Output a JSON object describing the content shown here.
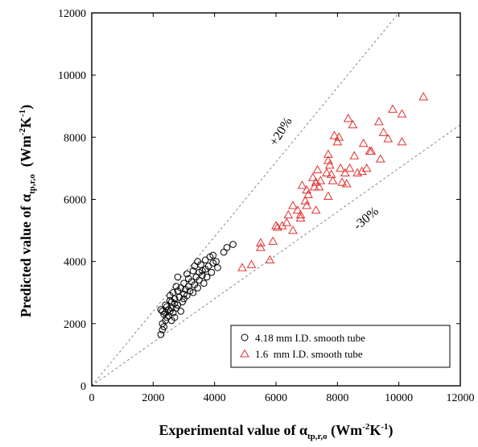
{
  "chart_data": {
    "type": "scatter",
    "xlabel": {
      "prefix": "Experimental value of α",
      "subscript": "tp,r,o",
      "unit_open": " (Wm",
      "unit_sup1": "-2",
      "unit_mid": "K",
      "unit_sup2": "-1",
      "unit_close": ")"
    },
    "ylabel": {
      "prefix": "Predicted value of α",
      "subscript": "tp,r,o",
      "unit_open": "  (Wm",
      "unit_sup1": "-2",
      "unit_mid": "K",
      "unit_sup2": "-1",
      "unit_close": ")"
    },
    "xlim": [
      0,
      12000
    ],
    "ylim": [
      0,
      12000
    ],
    "xticks": [
      "0",
      "2000",
      "4000",
      "6000",
      "8000",
      "10000",
      "12000"
    ],
    "yticks": [
      "0",
      "2000",
      "4000",
      "6000",
      "8000",
      "10000",
      "12000"
    ],
    "grid": false,
    "reference_lines": [
      {
        "label": "+20%",
        "factor": 1.2
      },
      {
        "label": "-30%",
        "factor": 0.7
      }
    ],
    "legend": {
      "placement": "bottom-right",
      "entries": [
        "4.18 mm I.D. smooth tube",
        "1.6  mm I.D. smooth tube"
      ]
    },
    "series": [
      {
        "name": "4.18 mm I.D. smooth tube",
        "marker": "circle",
        "color": "#000000",
        "points": [
          [
            2250,
            1650
          ],
          [
            2300,
            1800
          ],
          [
            2350,
            1900
          ],
          [
            2300,
            2000
          ],
          [
            2400,
            2100
          ],
          [
            2450,
            2200
          ],
          [
            2350,
            2300
          ],
          [
            2300,
            2400
          ],
          [
            2500,
            2450
          ],
          [
            2450,
            2550
          ],
          [
            2600,
            2500
          ],
          [
            2550,
            2400
          ],
          [
            2400,
            2600
          ],
          [
            2600,
            2700
          ],
          [
            2700,
            2200
          ],
          [
            2650,
            2350
          ],
          [
            2750,
            2500
          ],
          [
            2700,
            2800
          ],
          [
            2550,
            2900
          ],
          [
            2650,
            3000
          ],
          [
            2800,
            2600
          ],
          [
            2850,
            2850
          ],
          [
            2800,
            3050
          ],
          [
            2900,
            2400
          ],
          [
            2950,
            2700
          ],
          [
            3000,
            2950
          ],
          [
            2900,
            3150
          ],
          [
            2750,
            3200
          ],
          [
            2800,
            3500
          ],
          [
            3000,
            3300
          ],
          [
            3050,
            3100
          ],
          [
            3100,
            2900
          ],
          [
            3150,
            3200
          ],
          [
            3200,
            3050
          ],
          [
            3250,
            3350
          ],
          [
            3100,
            3600
          ],
          [
            3300,
            3000
          ],
          [
            3350,
            3250
          ],
          [
            3400,
            3500
          ],
          [
            3300,
            3700
          ],
          [
            3450,
            3150
          ],
          [
            3500,
            3400
          ],
          [
            3500,
            3650
          ],
          [
            3550,
            3900
          ],
          [
            3450,
            4000
          ],
          [
            3600,
            3550
          ],
          [
            3650,
            3300
          ],
          [
            3700,
            3750
          ],
          [
            3700,
            4050
          ],
          [
            3750,
            3500
          ],
          [
            3800,
            3850
          ],
          [
            3850,
            4150
          ],
          [
            3900,
            3650
          ],
          [
            3950,
            3950
          ],
          [
            4050,
            4000
          ],
          [
            4100,
            3800
          ],
          [
            3950,
            4200
          ],
          [
            4300,
            4300
          ],
          [
            4400,
            4450
          ],
          [
            4600,
            4550
          ],
          [
            2250,
            2450
          ],
          [
            2400,
            2350
          ],
          [
            2500,
            2250
          ],
          [
            2600,
            2100
          ],
          [
            2700,
            2650
          ],
          [
            2550,
            2750
          ],
          [
            3000,
            2800
          ],
          [
            3150,
            3450
          ],
          [
            3350,
            3850
          ],
          [
            3600,
            3700
          ]
        ]
      },
      {
        "name": "1.6  mm I.D. smooth tube",
        "marker": "triangle",
        "color": "#e03030",
        "points": [
          [
            4900,
            3800
          ],
          [
            5200,
            3900
          ],
          [
            5500,
            4600
          ],
          [
            5500,
            4450
          ],
          [
            5800,
            4050
          ],
          [
            5900,
            4650
          ],
          [
            6000,
            5150
          ],
          [
            6050,
            5100
          ],
          [
            6200,
            5150
          ],
          [
            6350,
            5250
          ],
          [
            6400,
            5500
          ],
          [
            6550,
            5800
          ],
          [
            6550,
            5000
          ],
          [
            6700,
            5650
          ],
          [
            6800,
            5500
          ],
          [
            6800,
            5400
          ],
          [
            6850,
            6450
          ],
          [
            6950,
            5950
          ],
          [
            7000,
            5800
          ],
          [
            7050,
            6150
          ],
          [
            7200,
            6700
          ],
          [
            7250,
            6400
          ],
          [
            7300,
            6550
          ],
          [
            7300,
            5650
          ],
          [
            7350,
            6950
          ],
          [
            7400,
            6400
          ],
          [
            7450,
            6600
          ],
          [
            7650,
            6850
          ],
          [
            7700,
            7450
          ],
          [
            7700,
            7250
          ],
          [
            7700,
            6100
          ],
          [
            7800,
            6800
          ],
          [
            7850,
            6600
          ],
          [
            7900,
            8050
          ],
          [
            8000,
            7850
          ],
          [
            8050,
            8000
          ],
          [
            8100,
            7000
          ],
          [
            8150,
            6550
          ],
          [
            8250,
            6850
          ],
          [
            8300,
            6500
          ],
          [
            8350,
            8600
          ],
          [
            8400,
            7000
          ],
          [
            8500,
            8400
          ],
          [
            8550,
            7400
          ],
          [
            8650,
            6850
          ],
          [
            8800,
            6900
          ],
          [
            8850,
            7800
          ],
          [
            8950,
            7000
          ],
          [
            9050,
            7550
          ],
          [
            9100,
            7550
          ],
          [
            9350,
            8500
          ],
          [
            9400,
            7300
          ],
          [
            9500,
            8150
          ],
          [
            9800,
            8900
          ],
          [
            9650,
            7950
          ],
          [
            10100,
            8750
          ],
          [
            10100,
            7850
          ],
          [
            10800,
            9300
          ],
          [
            7750,
            7100
          ],
          [
            7000,
            6300
          ]
        ]
      }
    ]
  }
}
